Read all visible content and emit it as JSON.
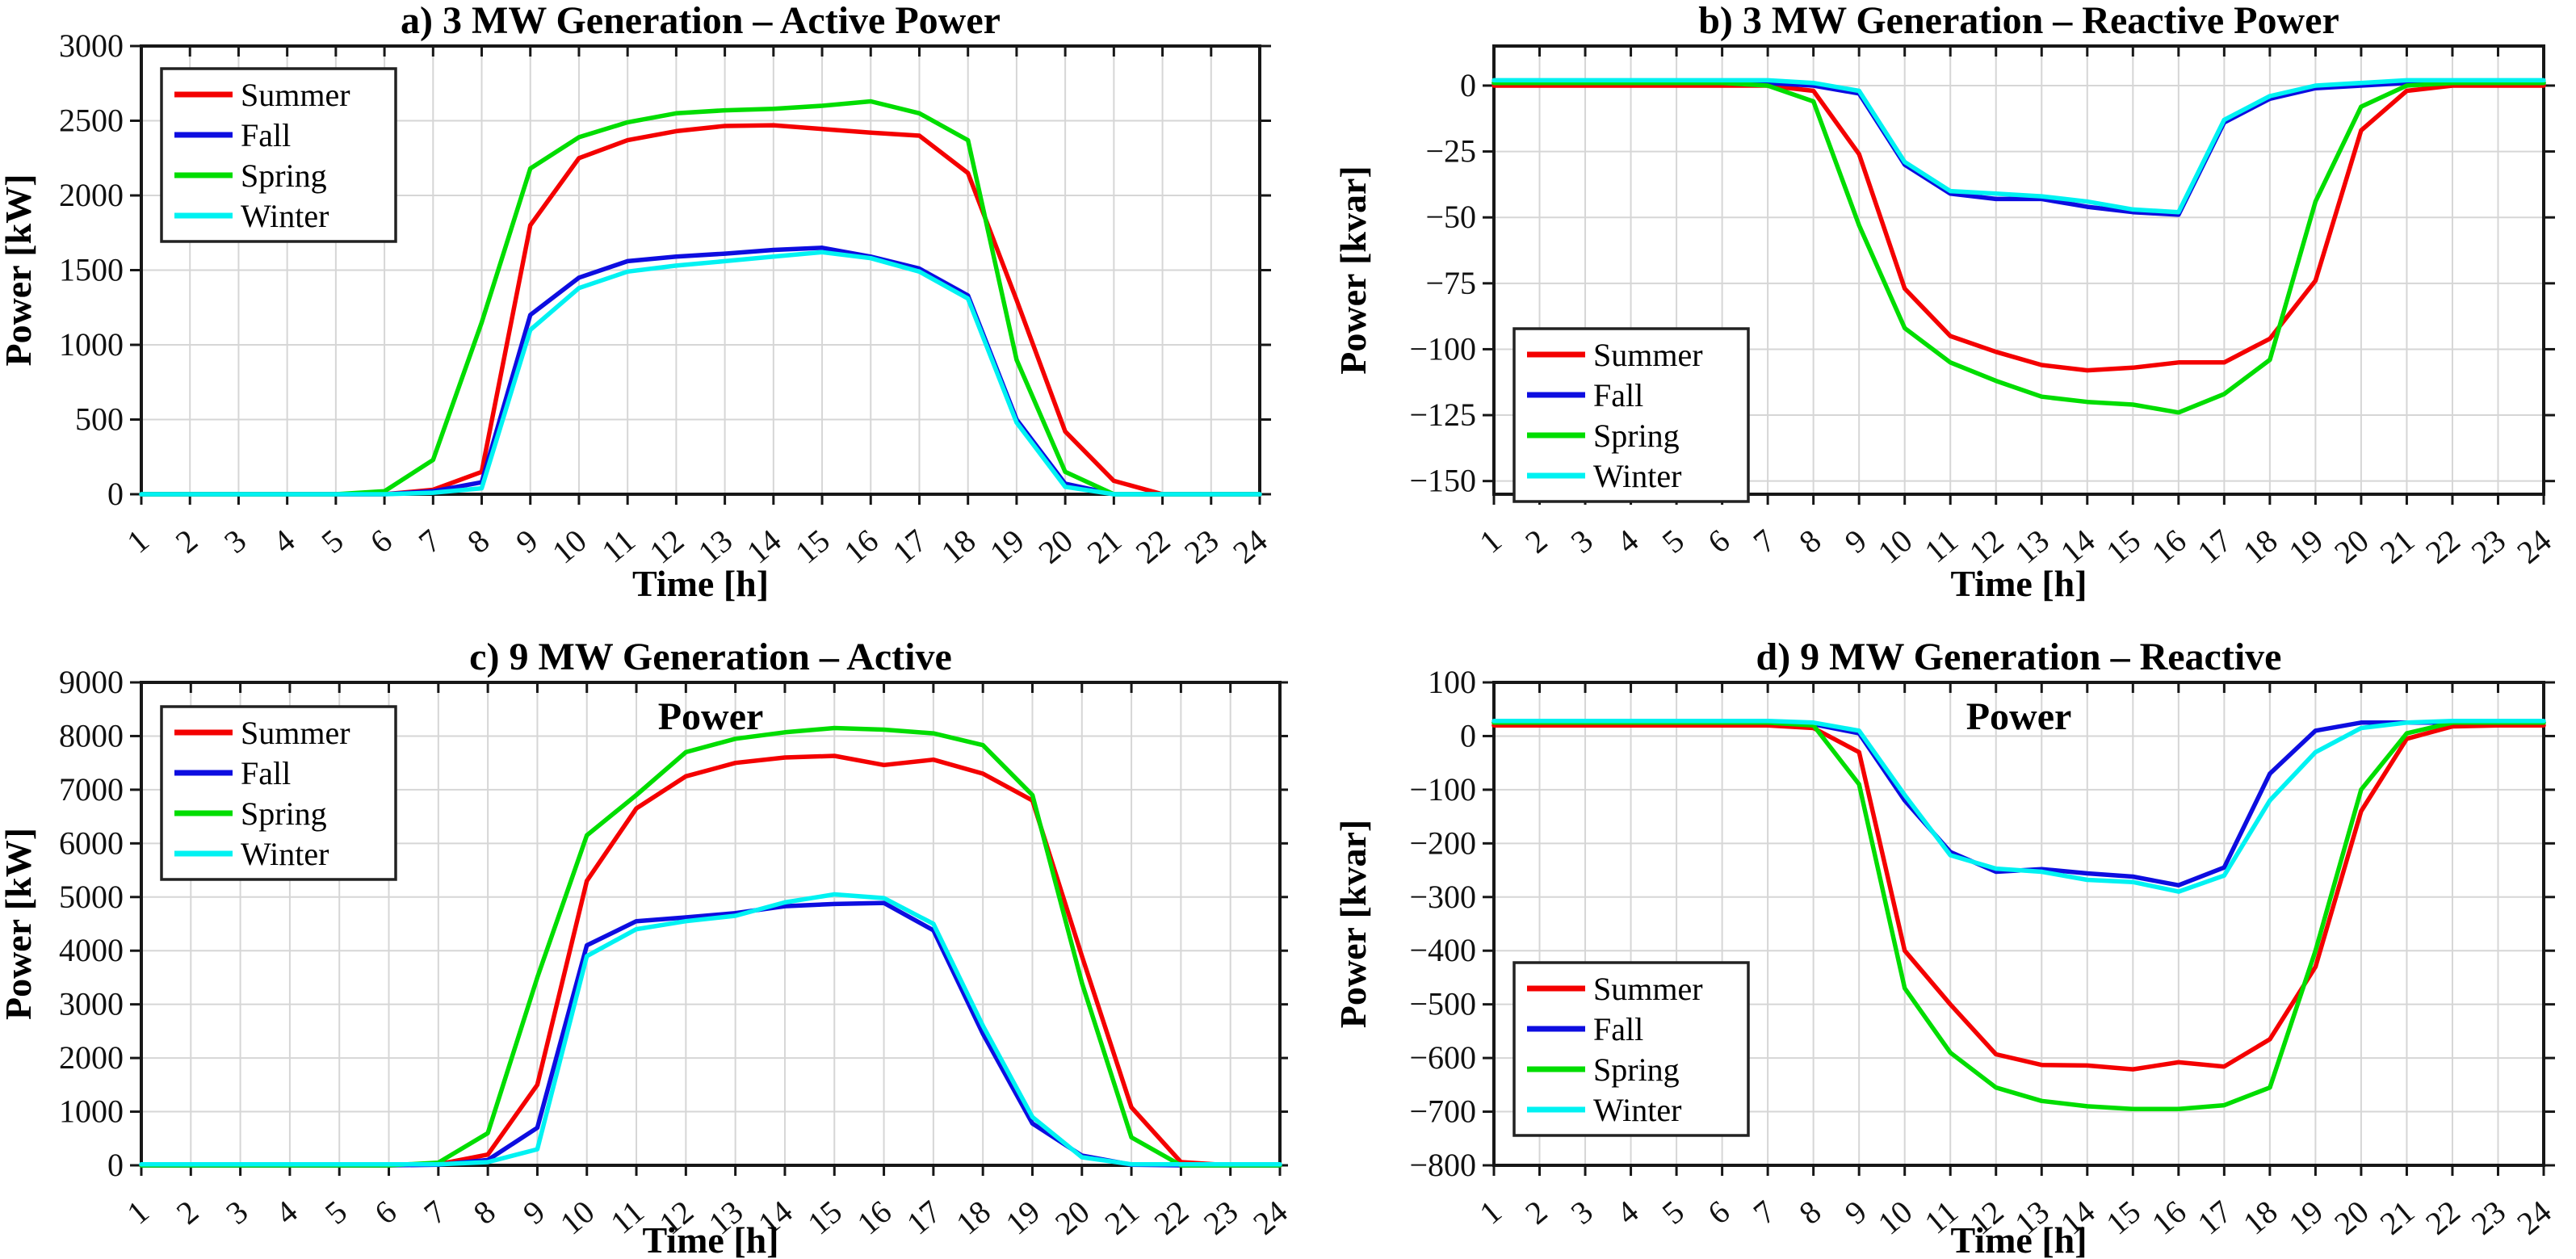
{
  "figure": {
    "background": "#ffffff",
    "grid_color": "#d6d6d6",
    "axis_color": "#171717",
    "legend_labels": [
      "Summer",
      "Fall",
      "Spring",
      "Winter"
    ],
    "series_colors": [
      "#f40000",
      "#0d0de0",
      "#00dd00",
      "#00f2f2"
    ]
  },
  "chart_data": [
    {
      "id": "panel-a",
      "type": "line",
      "title_lines": [
        "a)  3 MW Generation – Active Power"
      ],
      "xlabel": "Time [h]",
      "ylabel": "Power [kW]",
      "xlim": [
        1,
        24
      ],
      "ylim": [
        0,
        3000
      ],
      "yticks": [
        3000,
        2500,
        2000,
        1500,
        1000,
        500,
        0
      ],
      "xticks": [
        1,
        2,
        3,
        4,
        5,
        6,
        7,
        8,
        9,
        10,
        11,
        12,
        13,
        14,
        15,
        16,
        17,
        18,
        19,
        20,
        21,
        22,
        23,
        24
      ],
      "grid": true,
      "legend_position": "top-left",
      "series": [
        {
          "name": "Summer",
          "color": "#f40000",
          "values": [
            0,
            0,
            0,
            0,
            0,
            0,
            30,
            150,
            1800,
            2250,
            2370,
            2430,
            2465,
            2470,
            2445,
            2420,
            2400,
            2150,
            1300,
            420,
            90,
            0,
            0,
            0
          ]
        },
        {
          "name": "Fall",
          "color": "#0d0de0",
          "values": [
            0,
            0,
            0,
            0,
            0,
            0,
            20,
            80,
            1200,
            1450,
            1560,
            1590,
            1610,
            1635,
            1650,
            1590,
            1510,
            1330,
            500,
            70,
            0,
            0,
            0,
            0
          ]
        },
        {
          "name": "Spring",
          "color": "#00dd00",
          "values": [
            0,
            0,
            0,
            0,
            0,
            20,
            230,
            1150,
            2180,
            2390,
            2490,
            2550,
            2570,
            2580,
            2600,
            2630,
            2550,
            2370,
            900,
            150,
            0,
            0,
            0,
            0
          ]
        },
        {
          "name": "Winter",
          "color": "#00f2f2",
          "values": [
            0,
            0,
            0,
            0,
            0,
            0,
            10,
            40,
            1100,
            1380,
            1490,
            1530,
            1560,
            1590,
            1620,
            1580,
            1490,
            1310,
            480,
            50,
            0,
            0,
            0,
            0
          ]
        }
      ]
    },
    {
      "id": "panel-b",
      "type": "line",
      "title_lines": [
        "b) 3 MW Generation – Reactive Power"
      ],
      "xlabel": "Time [h]",
      "ylabel": "Power [kvar]",
      "xlim": [
        1,
        24
      ],
      "ylim": [
        -155,
        15
      ],
      "yticks": [
        0,
        -25,
        -50,
        -75,
        -100,
        -125,
        -150
      ],
      "xticks": [
        1,
        2,
        3,
        4,
        5,
        6,
        7,
        8,
        9,
        10,
        11,
        12,
        13,
        14,
        15,
        16,
        17,
        18,
        19,
        20,
        21,
        22,
        23,
        24
      ],
      "grid": true,
      "legend_position": "middle-left",
      "series": [
        {
          "name": "Summer",
          "color": "#f40000",
          "values": [
            0,
            0,
            0,
            0,
            0,
            0,
            0,
            -2,
            -26,
            -77,
            -95,
            -101,
            -106,
            -108,
            -107,
            -105,
            -105,
            -96,
            -74,
            -17,
            -2,
            0,
            0,
            0
          ]
        },
        {
          "name": "Fall",
          "color": "#0d0de0",
          "values": [
            1,
            1,
            1,
            1,
            1,
            1,
            1,
            0,
            -3,
            -30,
            -41,
            -43,
            -43,
            -46,
            -48,
            -49,
            -14,
            -5,
            -1,
            0,
            1,
            1,
            1,
            1
          ]
        },
        {
          "name": "Spring",
          "color": "#00dd00",
          "values": [
            1,
            1,
            1,
            1,
            1,
            1,
            0,
            -6,
            -53,
            -92,
            -105,
            -112,
            -118,
            -120,
            -121,
            -124,
            -117,
            -104,
            -44,
            -8,
            0,
            1,
            1,
            1
          ]
        },
        {
          "name": "Winter",
          "color": "#00f2f2",
          "values": [
            2,
            2,
            2,
            2,
            2,
            2,
            2,
            1,
            -2,
            -29,
            -40,
            -41,
            -42,
            -44,
            -47,
            -48,
            -13,
            -4,
            0,
            1,
            2,
            2,
            2,
            2
          ]
        }
      ]
    },
    {
      "id": "panel-c",
      "type": "line",
      "title_lines": [
        "c) 9 MW Generation – Active",
        "Power"
      ],
      "xlabel": "Time [h]",
      "ylabel": "Power [kW]",
      "xlim": [
        1,
        24
      ],
      "ylim": [
        0,
        9000
      ],
      "yticks": [
        9000,
        8000,
        7000,
        6000,
        5000,
        4000,
        3000,
        2000,
        1000,
        0
      ],
      "xticks": [
        1,
        2,
        3,
        4,
        5,
        6,
        7,
        8,
        9,
        10,
        11,
        12,
        13,
        14,
        15,
        16,
        17,
        18,
        19,
        20,
        21,
        22,
        23,
        24
      ],
      "grid": true,
      "legend_position": "top-left",
      "series": [
        {
          "name": "Summer",
          "color": "#f40000",
          "values": [
            0,
            0,
            0,
            0,
            0,
            0,
            20,
            200,
            1500,
            5300,
            6650,
            7250,
            7500,
            7600,
            7630,
            7460,
            7560,
            7300,
            6800,
            3900,
            1080,
            60,
            0,
            0
          ]
        },
        {
          "name": "Fall",
          "color": "#0d0de0",
          "values": [
            0,
            0,
            0,
            0,
            0,
            0,
            10,
            100,
            700,
            4100,
            4550,
            4620,
            4700,
            4830,
            4870,
            4890,
            4380,
            2450,
            780,
            180,
            10,
            0,
            0,
            0
          ]
        },
        {
          "name": "Spring",
          "color": "#00dd00",
          "values": [
            0,
            0,
            0,
            0,
            0,
            0,
            50,
            600,
            3500,
            6150,
            6900,
            7700,
            7950,
            8070,
            8150,
            8120,
            8050,
            7830,
            6900,
            3400,
            520,
            0,
            0,
            0
          ]
        },
        {
          "name": "Winter",
          "color": "#00f2f2",
          "values": [
            20,
            20,
            20,
            20,
            20,
            20,
            20,
            60,
            300,
            3900,
            4400,
            4550,
            4650,
            4900,
            5050,
            4980,
            4500,
            2600,
            900,
            150,
            20,
            20,
            20,
            20
          ]
        }
      ]
    },
    {
      "id": "panel-d",
      "type": "line",
      "title_lines": [
        "d) 9 MW Generation – Reactive",
        "Power"
      ],
      "xlabel": "Time [h]",
      "ylabel": "Power [kvar]",
      "xlim": [
        1,
        24
      ],
      "ylim": [
        -800,
        100
      ],
      "yticks": [
        100,
        0,
        -100,
        -200,
        -300,
        -400,
        -500,
        -600,
        -700,
        -800
      ],
      "xticks": [
        1,
        2,
        3,
        4,
        5,
        6,
        7,
        8,
        9,
        10,
        11,
        12,
        13,
        14,
        15,
        16,
        17,
        18,
        19,
        20,
        21,
        22,
        23,
        24
      ],
      "grid": true,
      "legend_position": "bottom-left",
      "series": [
        {
          "name": "Summer",
          "color": "#f40000",
          "values": [
            20,
            20,
            20,
            20,
            20,
            20,
            20,
            15,
            -30,
            -400,
            -500,
            -593,
            -613,
            -614,
            -621,
            -608,
            -616,
            -565,
            -430,
            -140,
            -5,
            18,
            20,
            20
          ]
        },
        {
          "name": "Fall",
          "color": "#0d0de0",
          "values": [
            25,
            25,
            25,
            25,
            25,
            25,
            25,
            22,
            5,
            -120,
            -216,
            -253,
            -248,
            -256,
            -262,
            -278,
            -245,
            -70,
            10,
            25,
            25,
            25,
            25,
            25
          ]
        },
        {
          "name": "Spring",
          "color": "#00dd00",
          "values": [
            25,
            25,
            25,
            25,
            25,
            25,
            25,
            20,
            -90,
            -470,
            -590,
            -655,
            -680,
            -690,
            -695,
            -695,
            -688,
            -655,
            -400,
            -100,
            5,
            25,
            25,
            25
          ]
        },
        {
          "name": "Winter",
          "color": "#00f2f2",
          "values": [
            28,
            28,
            28,
            28,
            28,
            28,
            28,
            25,
            10,
            -110,
            -222,
            -247,
            -253,
            -268,
            -272,
            -290,
            -260,
            -120,
            -30,
            15,
            25,
            28,
            28,
            28
          ]
        }
      ]
    }
  ]
}
